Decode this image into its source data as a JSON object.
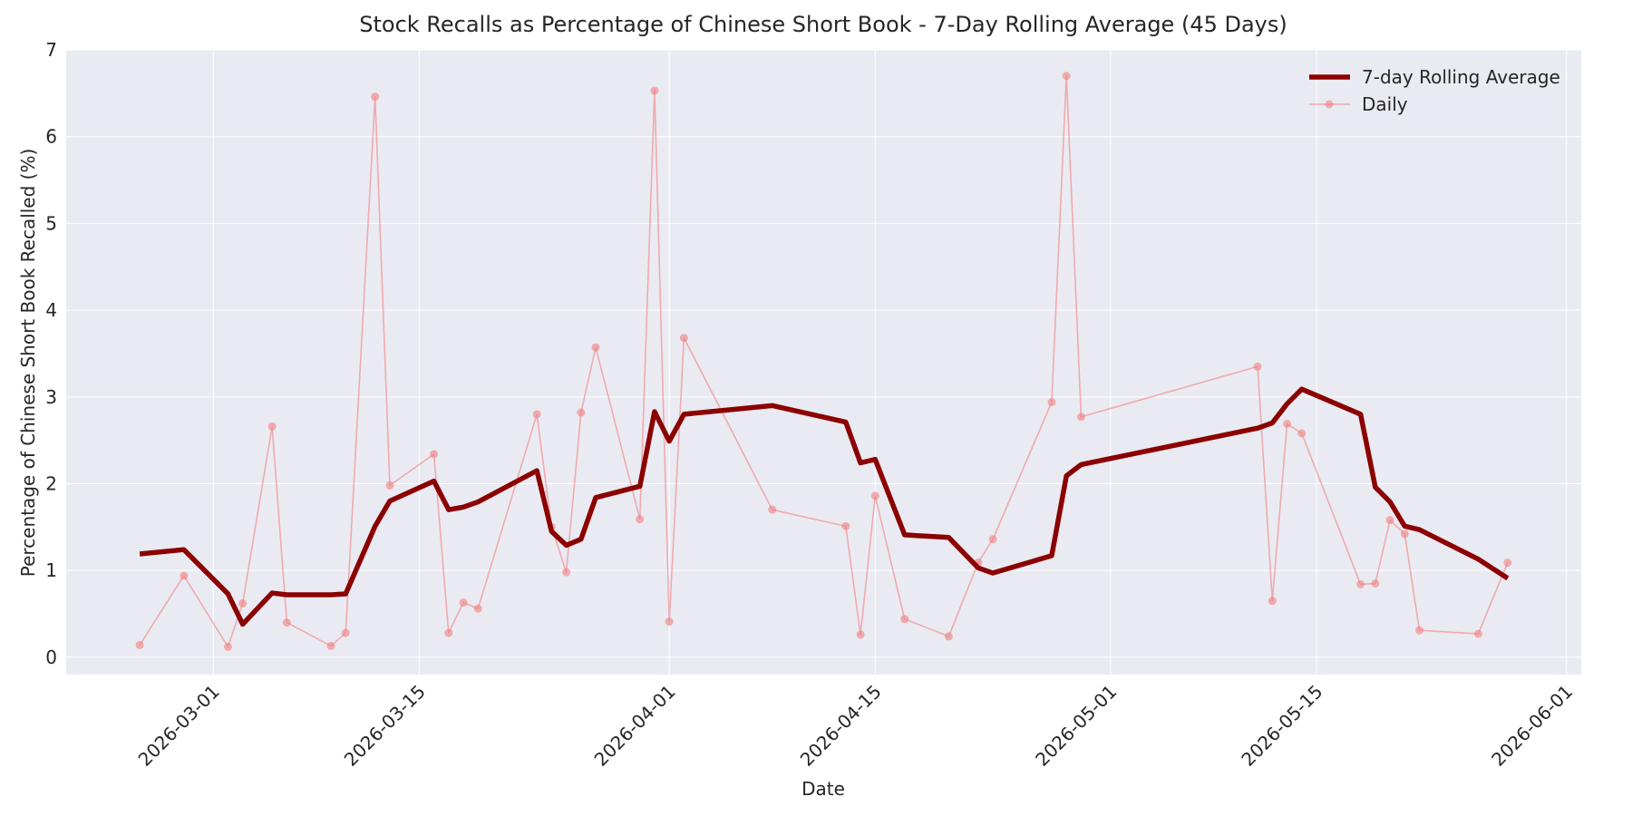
{
  "chart_data": {
    "type": "line",
    "title": "Stock Recalls as Percentage of Chinese Short Book - 7-Day Rolling Average (45 Days)",
    "x_label": "Date",
    "y_label": "Percentage of Chinese Short Book Recalled (%)",
    "x": [
      "2026-02-24",
      "2026-02-27",
      "2026-03-02",
      "2026-03-03",
      "2026-03-05",
      "2026-03-06",
      "2026-03-09",
      "2026-03-10",
      "2026-03-12",
      "2026-03-13",
      "2026-03-16",
      "2026-03-17",
      "2026-03-18",
      "2026-03-19",
      "2026-03-23",
      "2026-03-24",
      "2026-03-25",
      "2026-03-26",
      "2026-03-27",
      "2026-03-30",
      "2026-03-31",
      "2026-04-01",
      "2026-04-02",
      "2026-04-08",
      "2026-04-13",
      "2026-04-14",
      "2026-04-15",
      "2026-04-17",
      "2026-04-20",
      "2026-04-22",
      "2026-04-23",
      "2026-04-27",
      "2026-04-28",
      "2026-04-29",
      "2026-05-11",
      "2026-05-12",
      "2026-05-13",
      "2026-05-14",
      "2026-05-18",
      "2026-05-19",
      "2026-05-20",
      "2026-05-21",
      "2026-05-22",
      "2026-05-26",
      "2026-05-28"
    ],
    "series": [
      {
        "name": "7-day Rolling Average",
        "color": "#8b0000",
        "values": [
          1.19,
          1.24,
          0.73,
          0.38,
          0.74,
          0.72,
          0.72,
          0.73,
          1.51,
          1.8,
          2.03,
          1.7,
          1.73,
          1.79,
          2.15,
          1.45,
          1.29,
          1.36,
          1.84,
          1.97,
          2.83,
          2.49,
          2.8,
          2.9,
          2.71,
          2.24,
          2.28,
          1.41,
          1.38,
          1.03,
          0.97,
          1.17,
          2.09,
          2.22,
          2.64,
          2.7,
          2.92,
          3.09,
          2.8,
          1.96,
          1.79,
          1.51,
          1.47,
          1.13,
          0.91
        ]
      },
      {
        "name": "Daily",
        "color": "#f08080",
        "values": [
          0.14,
          0.94,
          0.12,
          0.62,
          2.66,
          0.4,
          0.13,
          0.28,
          6.46,
          1.98,
          2.34,
          0.28,
          0.63,
          0.56,
          2.8,
          1.5,
          0.98,
          2.82,
          3.57,
          1.59,
          6.53,
          0.41,
          3.68,
          1.7,
          1.51,
          0.26,
          1.86,
          0.44,
          0.24,
          1.09,
          1.36,
          2.94,
          6.7,
          2.77,
          3.35,
          0.65,
          2.69,
          2.58,
          0.84,
          0.85,
          1.58,
          1.42,
          0.31,
          0.27,
          1.09
        ]
      }
    ],
    "xlim": [
      "2026-02-19",
      "2026-06-02"
    ],
    "xticks": [
      "2026-03-01",
      "2026-03-15",
      "2026-04-01",
      "2026-04-15",
      "2026-05-01",
      "2026-05-15",
      "2026-06-01"
    ],
    "ylim": [
      -0.2,
      7
    ],
    "yticks": [
      0,
      1,
      2,
      3,
      4,
      5,
      6,
      7
    ],
    "grid": true,
    "legend": "upper right"
  }
}
